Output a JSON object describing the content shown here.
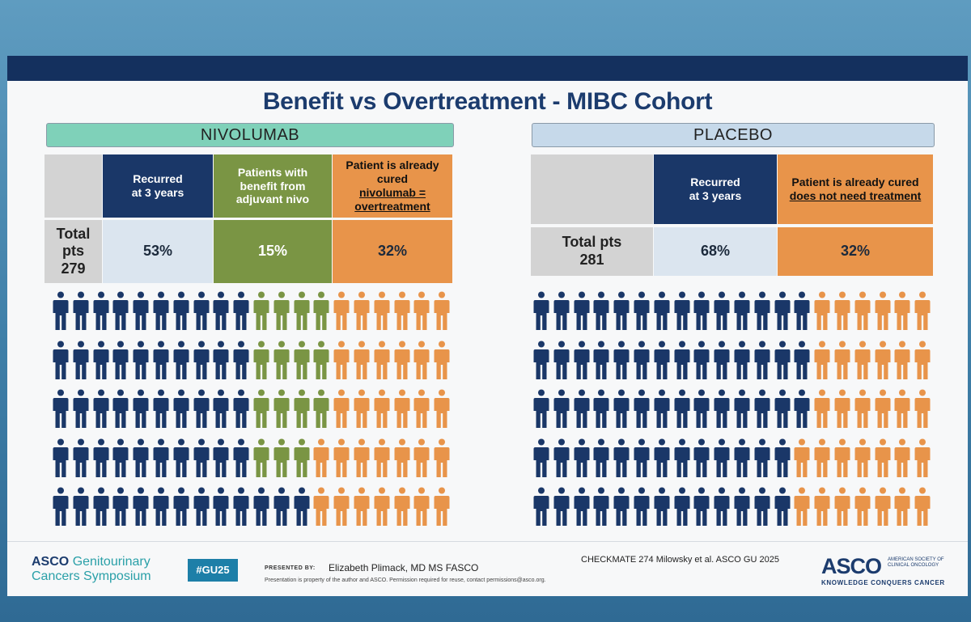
{
  "slide": {
    "title": "Benefit vs Overtreatment - MIBC Cohort"
  },
  "colors": {
    "recurred": "#1a3768",
    "benefit": "#7a9544",
    "cured": "#e8944a",
    "navy": "#14305e"
  },
  "nivolumab": {
    "header": "NIVOLUMAB",
    "col_recurred_1": "Recurred",
    "col_recurred_2": "at 3 years",
    "col_benefit_1": "Patients with",
    "col_benefit_2": "benefit from",
    "col_benefit_3": "adjuvant nivo",
    "col_cured_1": "Patient is already",
    "col_cured_2": "cured",
    "col_cured_3": "nivolumab =",
    "col_cured_4": "overtreatment",
    "totals_1": "Total",
    "totals_2": "pts",
    "totals_3": "279",
    "val_recurred": "53%",
    "val_benefit": "15%",
    "val_cured": "32%"
  },
  "placebo": {
    "header": "PLACEBO",
    "col_recurred_1": "Recurred",
    "col_recurred_2": "at 3 years",
    "col_cured_1": "Patient is already cured",
    "col_cured_2": "does not need treatment",
    "totals_1": "Total pts",
    "totals_2": "281",
    "val_recurred": "68%",
    "val_cured": "32%"
  },
  "pictograms": {
    "nivolumab": {
      "rows": [
        [
          10,
          4,
          6
        ],
        [
          10,
          4,
          6
        ],
        [
          10,
          4,
          6
        ],
        [
          10,
          3,
          7
        ],
        [
          13,
          0,
          7
        ]
      ]
    },
    "placebo": {
      "rows": [
        [
          14,
          0,
          6
        ],
        [
          14,
          0,
          6
        ],
        [
          14,
          0,
          6
        ],
        [
          13,
          0,
          7
        ],
        [
          13,
          0,
          7
        ]
      ]
    }
  },
  "footer": {
    "org_1": "ASCO",
    "org_2": "Genitourinary",
    "org_3": "Cancers Symposium",
    "hashtag": "#GU25",
    "presented_by": "PRESENTED BY:",
    "presenter": "Elizabeth Plimack, MD MS FASCO",
    "disclaimer": "Presentation is property of the author and ASCO. Permission required for reuse, contact permissions@asco.org.",
    "citation": "CHECKMATE 274 Milowsky et al. ASCO GU 2025",
    "logo": "ASCO",
    "logo_sub_1": "AMERICAN SOCIETY OF",
    "logo_sub_2": "CLINICAL ONCOLOGY",
    "tagline": "KNOWLEDGE CONQUERS CANCER"
  }
}
